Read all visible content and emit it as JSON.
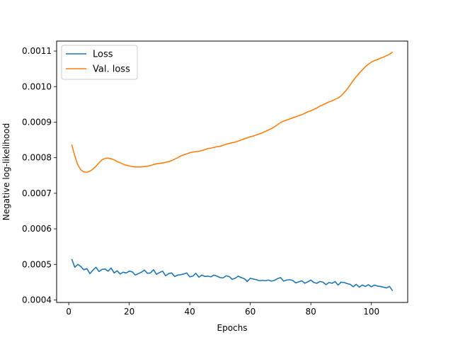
{
  "chart_data": {
    "type": "line",
    "title": "",
    "xlabel": "Epochs",
    "ylabel": "Negative log-likelihood",
    "xlim": [
      -4,
      112
    ],
    "ylim": [
      0.000393,
      0.001128
    ],
    "xticks": [
      {
        "value": 20,
        "label": "20"
      },
      {
        "value": 40,
        "label": "40"
      },
      {
        "value": 60,
        "label": "60"
      },
      {
        "value": 80,
        "label": "80"
      },
      {
        "value": 100,
        "label": "100"
      }
    ],
    "xticks_extra": [
      {
        "value": 0,
        "label": "0"
      }
    ],
    "yticks": [
      {
        "value": 0.0004,
        "label": "0.0004"
      },
      {
        "value": 0.0005,
        "label": "0.0005"
      },
      {
        "value": 0.0006,
        "label": "0.0006"
      },
      {
        "value": 0.0007,
        "label": "0.0007"
      },
      {
        "value": 0.0008,
        "label": "0.0008"
      },
      {
        "value": 0.0009,
        "label": "0.0009"
      },
      {
        "value": 0.001,
        "label": "0.0010"
      },
      {
        "value": 0.0011,
        "label": "0.0011"
      }
    ],
    "grid": false,
    "legend": "top-left",
    "series": [
      {
        "name": "Loss",
        "color": "#1f77b4",
        "points": [
          [
            1,
            0.000515
          ],
          [
            2,
            0.000492
          ],
          [
            3,
            0.0005
          ],
          [
            4,
            0.000494
          ],
          [
            5,
            0.000485
          ],
          [
            6,
            0.000488
          ],
          [
            7,
            0.000474
          ],
          [
            8,
            0.000484
          ],
          [
            9,
            0.000492
          ],
          [
            10,
            0.00048
          ],
          [
            11,
            0.000486
          ],
          [
            12,
            0.000487
          ],
          [
            13,
            0.000481
          ],
          [
            14,
            0.00049
          ],
          [
            15,
            0.000476
          ],
          [
            16,
            0.000482
          ],
          [
            17,
            0.000473
          ],
          [
            18,
            0.000478
          ],
          [
            19,
            0.000476
          ],
          [
            20,
            0.000481
          ],
          [
            21,
            0.000479
          ],
          [
            22,
            0.00047
          ],
          [
            23,
            0.000474
          ],
          [
            24,
            0.000478
          ],
          [
            25,
            0.000484
          ],
          [
            26,
            0.000475
          ],
          [
            27,
            0.000476
          ],
          [
            28,
            0.000485
          ],
          [
            29,
            0.000472
          ],
          [
            30,
            0.000477
          ],
          [
            31,
            0.000481
          ],
          [
            32,
            0.000468
          ],
          [
            33,
            0.000474
          ],
          [
            34,
            0.000476
          ],
          [
            35,
            0.000466
          ],
          [
            36,
            0.00047
          ],
          [
            37,
            0.000471
          ],
          [
            38,
            0.000473
          ],
          [
            39,
            0.000476
          ],
          [
            40,
            0.000465
          ],
          [
            41,
            0.000467
          ],
          [
            42,
            0.000475
          ],
          [
            43,
            0.000464
          ],
          [
            44,
            0.00047
          ],
          [
            45,
            0.000466
          ],
          [
            46,
            0.000467
          ],
          [
            47,
            0.000465
          ],
          [
            48,
            0.00047
          ],
          [
            49,
            0.000467
          ],
          [
            50,
            0.000463
          ],
          [
            51,
            0.000462
          ],
          [
            52,
            0.000468
          ],
          [
            53,
            0.000466
          ],
          [
            54,
            0.000458
          ],
          [
            55,
            0.000461
          ],
          [
            56,
            0.000467
          ],
          [
            57,
            0.000463
          ],
          [
            58,
            0.00046
          ],
          [
            59,
            0.000452
          ],
          [
            60,
            0.000461
          ],
          [
            61,
            0.000459
          ],
          [
            62,
            0.000457
          ],
          [
            63,
            0.000454
          ],
          [
            64,
            0.000455
          ],
          [
            65,
            0.000454
          ],
          [
            66,
            0.000456
          ],
          [
            67,
            0.000453
          ],
          [
            68,
            0.000455
          ],
          [
            69,
            0.00046
          ],
          [
            70,
            0.000463
          ],
          [
            71,
            0.000453
          ],
          [
            72,
            0.000456
          ],
          [
            73,
            0.000457
          ],
          [
            74,
            0.000455
          ],
          [
            75,
            0.000448
          ],
          [
            76,
            0.000451
          ],
          [
            77,
            0.000454
          ],
          [
            78,
            0.000447
          ],
          [
            79,
            0.000451
          ],
          [
            80,
            0.000456
          ],
          [
            81,
            0.000449
          ],
          [
            82,
            0.000447
          ],
          [
            83,
            0.000452
          ],
          [
            84,
            0.00045
          ],
          [
            85,
            0.000443
          ],
          [
            86,
            0.000449
          ],
          [
            87,
            0.000447
          ],
          [
            88,
            0.000452
          ],
          [
            89,
            0.000442
          ],
          [
            90,
            0.00045
          ],
          [
            91,
            0.000449
          ],
          [
            92,
            0.000446
          ],
          [
            93,
            0.000444
          ],
          [
            94,
            0.000437
          ],
          [
            95,
            0.000444
          ],
          [
            96,
            0.000436
          ],
          [
            97,
            0.000442
          ],
          [
            98,
            0.000438
          ],
          [
            99,
            0.000443
          ],
          [
            100,
            0.000437
          ],
          [
            101,
            0.000442
          ],
          [
            102,
            0.000439
          ],
          [
            103,
            0.000438
          ],
          [
            104,
            0.000436
          ],
          [
            105,
            0.000434
          ],
          [
            106,
            0.000438
          ],
          [
            107,
            0.000426
          ]
        ]
      },
      {
        "name": "Val. loss",
        "color": "#ff7f0e",
        "points": [
          [
            1,
            0.000837
          ],
          [
            2,
            0.000805
          ],
          [
            3,
            0.00078
          ],
          [
            4,
            0.000766
          ],
          [
            5,
            0.00076
          ],
          [
            6,
            0.000759
          ],
          [
            7,
            0.000762
          ],
          [
            8,
            0.000768
          ],
          [
            9,
            0.000776
          ],
          [
            10,
            0.000786
          ],
          [
            11,
            0.000794
          ],
          [
            12,
            0.000798
          ],
          [
            13,
            0.000799
          ],
          [
            14,
            0.000797
          ],
          [
            15,
            0.000794
          ],
          [
            16,
            0.000789
          ],
          [
            17,
            0.000786
          ],
          [
            18,
            0.000782
          ],
          [
            19,
            0.000779
          ],
          [
            20,
            0.000777
          ],
          [
            21,
            0.000775
          ],
          [
            22,
            0.000774
          ],
          [
            23,
            0.000774
          ],
          [
            24,
            0.000774
          ],
          [
            25,
            0.000775
          ],
          [
            26,
            0.000776
          ],
          [
            27,
            0.000778
          ],
          [
            28,
            0.000781
          ],
          [
            29,
            0.000783
          ],
          [
            30,
            0.000784
          ],
          [
            31,
            0.000785
          ],
          [
            32,
            0.000787
          ],
          [
            33,
            0.000789
          ],
          [
            34,
            0.000792
          ],
          [
            35,
            0.000796
          ],
          [
            36,
            0.0008
          ],
          [
            37,
            0.000805
          ],
          [
            38,
            0.000808
          ],
          [
            39,
            0.000811
          ],
          [
            40,
            0.000814
          ],
          [
            41,
            0.000816
          ],
          [
            42,
            0.000817
          ],
          [
            43,
            0.000818
          ],
          [
            44,
            0.00082
          ],
          [
            45,
            0.000823
          ],
          [
            46,
            0.000826
          ],
          [
            47,
            0.000827
          ],
          [
            48,
            0.000829
          ],
          [
            49,
            0.000831
          ],
          [
            50,
            0.000832
          ],
          [
            51,
            0.000835
          ],
          [
            52,
            0.000838
          ],
          [
            53,
            0.00084
          ],
          [
            54,
            0.000842
          ],
          [
            55,
            0.000844
          ],
          [
            56,
            0.000847
          ],
          [
            57,
            0.00085
          ],
          [
            58,
            0.000853
          ],
          [
            59,
            0.000856
          ],
          [
            60,
            0.000859
          ],
          [
            61,
            0.000861
          ],
          [
            62,
            0.000864
          ],
          [
            63,
            0.000867
          ],
          [
            64,
            0.00087
          ],
          [
            65,
            0.000874
          ],
          [
            66,
            0.000878
          ],
          [
            67,
            0.000882
          ],
          [
            68,
            0.000887
          ],
          [
            69,
            0.000893
          ],
          [
            70,
            0.000899
          ],
          [
            71,
            0.000903
          ],
          [
            72,
            0.000906
          ],
          [
            73,
            0.000909
          ],
          [
            74,
            0.000912
          ],
          [
            75,
            0.000915
          ],
          [
            76,
            0.000918
          ],
          [
            77,
            0.000921
          ],
          [
            78,
            0.000925
          ],
          [
            79,
            0.000929
          ],
          [
            80,
            0.000932
          ],
          [
            81,
            0.000936
          ],
          [
            82,
            0.00094
          ],
          [
            83,
            0.000945
          ],
          [
            84,
            0.000949
          ],
          [
            85,
            0.000953
          ],
          [
            86,
            0.000957
          ],
          [
            87,
            0.00096
          ],
          [
            88,
            0.000964
          ],
          [
            89,
            0.000968
          ],
          [
            90,
            0.000974
          ],
          [
            91,
            0.000983
          ],
          [
            92,
            0.000993
          ],
          [
            93,
            0.001005
          ],
          [
            94,
            0.001017
          ],
          [
            95,
            0.001028
          ],
          [
            96,
            0.001038
          ],
          [
            97,
            0.001047
          ],
          [
            98,
            0.001056
          ],
          [
            99,
            0.001063
          ],
          [
            100,
            0.001069
          ],
          [
            101,
            0.001073
          ],
          [
            102,
            0.001076
          ],
          [
            103,
            0.00108
          ],
          [
            104,
            0.001083
          ],
          [
            105,
            0.001087
          ],
          [
            106,
            0.001091
          ],
          [
            107,
            0.001097
          ]
        ]
      }
    ]
  }
}
